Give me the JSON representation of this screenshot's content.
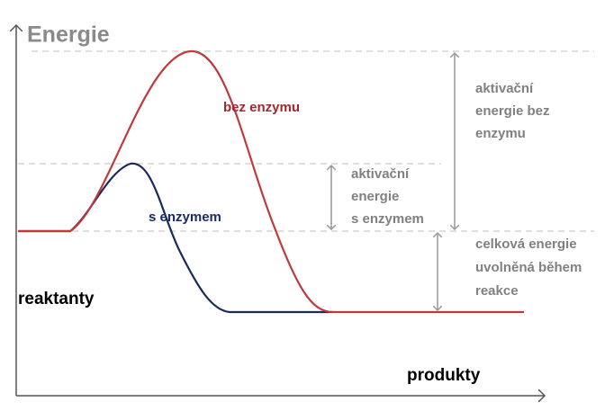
{
  "axis_label": "Energie",
  "curves": {
    "without_enzyme": "bez enzymu",
    "with_enzyme": "s enzymem"
  },
  "states": {
    "reactants": "reaktanty",
    "products": "produkty"
  },
  "annotations": {
    "activation_without": [
      "aktivační",
      "energie bez",
      "enzymu"
    ],
    "activation_with": [
      "aktivační",
      "energie",
      "s enzymem"
    ],
    "total_energy": [
      "celková energie",
      "uvolněná během",
      "reakce"
    ]
  }
}
